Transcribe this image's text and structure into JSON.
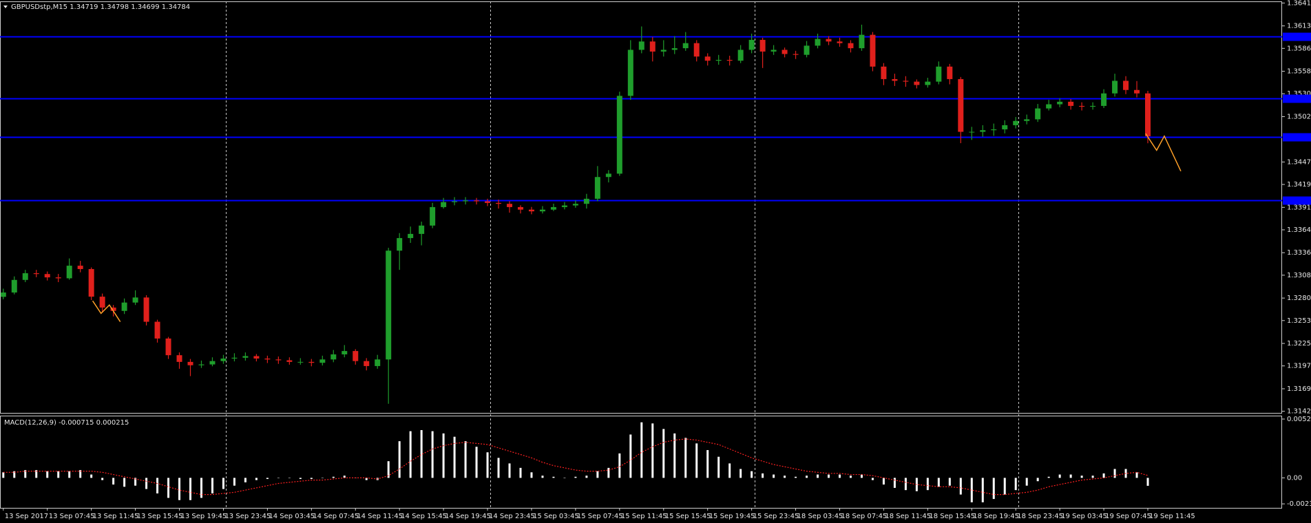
{
  "chart_data": [
    {
      "type": "candlestick",
      "title": "GBPUSDstp,M15  1.34719 1.34798 1.34699 1.34784",
      "xlim": [
        -0.3,
        116.2
      ],
      "ylim": [
        1.314,
        1.36435
      ],
      "yticks": [
        1.36415,
        1.36135,
        {
          "value": 1.3586,
          "label": "1.35860"
        },
        {
          "value": 1.3558,
          "label": "1.35580"
        },
        1.35305,
        1.35025,
        1.3447,
        1.34195,
        1.33915,
        {
          "value": 1.3364,
          "label": "1.33640"
        },
        {
          "value": 1.3336,
          "label": "1.33360"
        },
        1.33085,
        1.32805,
        1.3253,
        {
          "value": 1.3225,
          "label": "1.32250"
        },
        1.31975,
        1.31695,
        {
          "value": 1.3142,
          "label": "1.31420"
        }
      ],
      "xticks": [
        {
          "value": 0,
          "label": "13 Sep 2017"
        },
        {
          "value": 4,
          "label": "13 Sep 07:45"
        },
        {
          "value": 8,
          "label": "13 Sep 11:45"
        },
        {
          "value": 12,
          "label": "13 Sep 15:45"
        },
        {
          "value": 16,
          "label": "13 Sep 19:45"
        },
        {
          "value": 20,
          "label": "13 Sep 23:45"
        },
        {
          "value": 24,
          "label": "14 Sep 03:45"
        },
        {
          "value": 28,
          "label": "14 Sep 07:45"
        },
        {
          "value": 32,
          "label": "14 Sep 11:45"
        },
        {
          "value": 36,
          "label": "14 Sep 15:45"
        },
        {
          "value": 40,
          "label": "14 Sep 19:45"
        },
        {
          "value": 44,
          "label": "14 Sep 23:45"
        },
        {
          "value": 48,
          "label": "15 Sep 03:45"
        },
        {
          "value": 52,
          "label": "15 Sep 07:45"
        },
        {
          "value": 56,
          "label": "15 Sep 11:45"
        },
        {
          "value": 60,
          "label": "15 Sep 15:45"
        },
        {
          "value": 64,
          "label": "15 Sep 19:45"
        },
        {
          "value": 68,
          "label": "15 Sep 23:45"
        },
        {
          "value": 72,
          "label": "18 Sep 03:45"
        },
        {
          "value": 76,
          "label": "18 Sep 07:45"
        },
        {
          "value": 80,
          "label": "18 Sep 11:45"
        },
        {
          "value": 84,
          "label": "18 Sep 15:45"
        },
        {
          "value": 88,
          "label": "18 Sep 19:45"
        },
        {
          "value": 92,
          "label": "18 Sep 23:45"
        },
        {
          "value": 96,
          "label": "19 Sep 03:45"
        },
        {
          "value": 100,
          "label": "19 Sep 07:45"
        },
        {
          "value": 104,
          "label": "19 Sep 11:45"
        }
      ],
      "day_lines": [
        20.25,
        44.25,
        68.25,
        92.25
      ],
      "up_color": "#1f9e2c",
      "down_color": "#e0201c",
      "hlines": [
        1.36006,
        1.35248,
        1.34777,
        1.33999
      ],
      "hline_color": "#0000ff",
      "drawings": [
        {
          "color": "#ffa028",
          "x": [
            8.12,
            8.88,
            9.64,
            10.63
          ],
          "y": [
            1.32771,
            1.32617,
            1.3272,
            1.32515
          ]
        },
        {
          "color": "#ffa028",
          "x": [
            103.8,
            104.8,
            105.5,
            107.0
          ],
          "y": [
            1.34818,
            1.34613,
            1.34787,
            1.34358
          ]
        }
      ],
      "open": [
        1.3282,
        1.32873,
        1.33027,
        1.33109,
        1.33099,
        1.33058,
        1.33047,
        1.33201,
        1.3316,
        1.32822,
        1.32689,
        1.32648,
        1.3275,
        1.32812,
        1.32515,
        1.3231,
        1.32106,
        1.32024,
        1.31983,
        1.31993,
        1.32034,
        1.32065,
        1.32075,
        1.32095,
        1.32065,
        1.32054,
        1.32044,
        1.32024,
        1.32024,
        1.32013,
        1.32054,
        1.32116,
        1.32157,
        1.32034,
        1.31973,
        1.32054,
        1.33385,
        1.33539,
        1.3359,
        1.33692,
        1.33918,
        1.33979,
        1.33989,
        1.33999,
        1.33989,
        1.33969,
        1.33958,
        1.33918,
        1.33887,
        1.33866,
        1.33887,
        1.33918,
        1.33938,
        1.33958,
        1.3402,
        1.34286,
        1.34327,
        1.35279,
        1.35842,
        1.35944,
        1.35821,
        1.35842,
        1.35862,
        1.35924,
        1.3576,
        1.35709,
        1.35719,
        1.35709,
        1.35842,
        1.35964,
        1.35821,
        1.35842,
        1.35791,
        1.35781,
        1.35893,
        1.35975,
        1.35944,
        1.35924,
        1.35862,
        1.36026,
        1.35637,
        1.35484,
        1.35463,
        1.35453,
        1.35412,
        1.35453,
        1.35637,
        1.35484,
        1.34839,
        1.34839,
        1.34859,
        1.34869,
        1.3492,
        1.34972,
        1.34992,
        1.35125,
        1.35176,
        1.35207,
        1.35156,
        1.35146,
        1.35156,
        1.35309,
        1.35463,
        1.35351,
        1.35309
      ],
      "high": [
        1.3292,
        1.3307,
        1.3315,
        1.3315,
        1.3313,
        1.331,
        1.3329,
        1.3326,
        1.3318,
        1.3286,
        1.3272,
        1.328,
        1.329,
        1.3284,
        1.3254,
        1.3233,
        1.3214,
        1.3206,
        1.3204,
        1.3208,
        1.3211,
        1.3213,
        1.3214,
        1.3212,
        1.321,
        1.3209,
        1.3208,
        1.3207,
        1.3206,
        1.321,
        1.3217,
        1.3223,
        1.3218,
        1.3207,
        1.3211,
        1.3342,
        1.336,
        1.3368,
        1.3374,
        1.3397,
        1.3403,
        1.3404,
        1.3404,
        1.3403,
        1.3402,
        1.3401,
        1.3399,
        1.3394,
        1.3392,
        1.3393,
        1.3396,
        1.3398,
        1.34,
        1.3408,
        1.3442,
        1.3437,
        1.3533,
        1.3596,
        1.36128,
        1.36,
        1.3596,
        1.3601,
        1.3606,
        1.3596,
        1.358,
        1.3578,
        1.3577,
        1.359,
        1.3604,
        1.3599,
        1.359,
        1.3587,
        1.3583,
        1.3595,
        1.3604,
        1.3601,
        1.3599,
        1.3596,
        1.3615,
        1.3606,
        1.3568,
        1.3555,
        1.3552,
        1.3548,
        1.355,
        1.357,
        1.3567,
        1.3551,
        1.349,
        1.3492,
        1.3494,
        1.3498,
        1.3502,
        1.3505,
        1.3518,
        1.3523,
        1.3525,
        1.3524,
        1.352,
        1.352,
        1.3536,
        1.3555,
        1.3552,
        1.3546,
        1.3534
      ],
      "low": [
        1.3279,
        1.3285,
        1.33,
        1.3306,
        1.3302,
        1.33,
        1.3303,
        1.3312,
        1.3278,
        1.3264,
        1.3258,
        1.3261,
        1.3272,
        1.3247,
        1.3226,
        1.3206,
        1.3194,
        1.3185,
        1.3195,
        1.3197,
        1.32,
        1.3203,
        1.3204,
        1.3203,
        1.3201,
        1.32,
        1.3199,
        1.3199,
        1.3197,
        1.3198,
        1.3202,
        1.3208,
        1.3199,
        1.3192,
        1.3194,
        1.31512,
        1.3315,
        1.3348,
        1.3345,
        1.3366,
        1.339,
        1.3394,
        1.3395,
        1.3395,
        1.3393,
        1.339,
        1.3385,
        1.3384,
        1.3383,
        1.3384,
        1.3387,
        1.3389,
        1.3391,
        1.339,
        1.3399,
        1.3422,
        1.343,
        1.3523,
        1.358,
        1.357,
        1.3576,
        1.3579,
        1.3583,
        1.357,
        1.3565,
        1.3566,
        1.3565,
        1.3568,
        1.358,
        1.3562,
        1.3578,
        1.3575,
        1.3573,
        1.3575,
        1.3586,
        1.359,
        1.3588,
        1.3581,
        1.3583,
        1.3558,
        1.3541,
        1.354,
        1.3539,
        1.3537,
        1.3538,
        1.3542,
        1.3542,
        1.347,
        1.3474,
        1.3478,
        1.3479,
        1.3482,
        1.3488,
        1.3493,
        1.3496,
        1.351,
        1.3514,
        1.3511,
        1.351,
        1.3511,
        1.3513,
        1.3527,
        1.353,
        1.3526,
        1.34699
      ],
      "close": [
        1.32873,
        1.33027,
        1.33109,
        1.33099,
        1.33058,
        1.33047,
        1.33201,
        1.3316,
        1.32822,
        1.32689,
        1.32648,
        1.3275,
        1.32812,
        1.32515,
        1.3231,
        1.32106,
        1.32024,
        1.31983,
        1.31993,
        1.32034,
        1.32065,
        1.32075,
        1.32095,
        1.32065,
        1.32054,
        1.32044,
        1.32024,
        1.32024,
        1.32013,
        1.32054,
        1.32116,
        1.32157,
        1.32034,
        1.31973,
        1.32054,
        1.33385,
        1.33539,
        1.3359,
        1.33692,
        1.33918,
        1.33979,
        1.33989,
        1.33999,
        1.33989,
        1.33969,
        1.33958,
        1.33918,
        1.33887,
        1.33866,
        1.33887,
        1.33918,
        1.33938,
        1.33958,
        1.3402,
        1.34286,
        1.34327,
        1.35279,
        1.35842,
        1.35944,
        1.35821,
        1.35842,
        1.35862,
        1.35924,
        1.3576,
        1.35709,
        1.35719,
        1.35709,
        1.35842,
        1.35964,
        1.35821,
        1.35842,
        1.35791,
        1.35781,
        1.35893,
        1.35975,
        1.35944,
        1.35924,
        1.35862,
        1.36026,
        1.35637,
        1.35484,
        1.35463,
        1.35453,
        1.35412,
        1.35453,
        1.35637,
        1.35484,
        1.34839,
        1.34839,
        1.34859,
        1.34869,
        1.3492,
        1.34972,
        1.34992,
        1.35125,
        1.35176,
        1.35207,
        1.35156,
        1.35146,
        1.35156,
        1.35309,
        1.35463,
        1.35351,
        1.35309,
        1.34784
      ]
    },
    {
      "type": "macd",
      "title": "MACD(12,26,9) -0.000715 0.000215",
      "xlim": [
        -0.3,
        116.2
      ],
      "ylim": [
        -0.0027,
        0.0056
      ],
      "yticks": [
        0.005293,
        {
          "value": 0,
          "label": "0.00"
        },
        -0.00234
      ],
      "series": [
        {
          "type": "bar",
          "color": "#ffffff",
          "values": [
            0.0005,
            0.0006,
            0.0007,
            0.0007,
            0.0006,
            0.0006,
            0.0006,
            0.0007,
            0.0003,
            -0.0002,
            -0.0006,
            -0.0008,
            -0.0007,
            -0.001,
            -0.0014,
            -0.0018,
            -0.002,
            -0.002,
            -0.0018,
            -0.0014,
            -0.001,
            -0.0007,
            -0.0004,
            -0.0002,
            -0.0001,
            0,
            0,
            -0.0001,
            -0.0001,
            0,
            0.0001,
            0.0002,
            0,
            -0.0002,
            -0.0002,
            0.0015,
            0.0033,
            0.0042,
            0.0043,
            0.0042,
            0.004,
            0.0037,
            0.0033,
            0.0028,
            0.0023,
            0.0018,
            0.0013,
            0.0009,
            0.0005,
            0.0002,
            0.0001,
            0,
            0.0001,
            0.0002,
            0.0006,
            0.0009,
            0.0022,
            0.0039,
            0.005,
            0.0049,
            0.0044,
            0.004,
            0.0036,
            0.0031,
            0.0025,
            0.0019,
            0.0013,
            0.0008,
            0.0006,
            0.0004,
            0.0003,
            0.0002,
            0.0001,
            0.0002,
            0.0003,
            0.0003,
            0.0003,
            0.0002,
            0.0003,
            -0.0002,
            -0.0006,
            -0.0009,
            -0.0011,
            -0.0012,
            -0.0011,
            -0.0008,
            -0.0007,
            -0.0015,
            -0.0022,
            -0.0022,
            -0.0019,
            -0.0015,
            -0.0011,
            -0.0007,
            -0.0003,
            0.0001,
            0.0003,
            0.0003,
            0.0002,
            0.0002,
            0.0004,
            0.0008,
            0.0008,
            0.0005,
            -0.000715
          ]
        },
        {
          "type": "line",
          "color": "#ff2020",
          "values": [
            0.0005,
            0.0005,
            0.0006,
            0.0006,
            0.0006,
            0.0006,
            0.0006,
            0.0006,
            0.0006,
            0.0005,
            0.0003,
            0.0001,
            -0.0001,
            -0.0003,
            -0.0005,
            -0.0008,
            -0.0011,
            -0.0013,
            -0.0015,
            -0.0015,
            -0.0014,
            -0.0013,
            -0.0011,
            -0.0009,
            -0.0007,
            -0.0005,
            -0.0004,
            -0.0003,
            -0.0002,
            -0.0002,
            -0.0001,
            0,
            0,
            0,
            -0.0001,
            0.0002,
            0.0008,
            0.0015,
            0.0021,
            0.0026,
            0.0029,
            0.0031,
            0.0032,
            0.0031,
            0.003,
            0.0027,
            0.0024,
            0.0021,
            0.0018,
            0.0014,
            0.0011,
            0.0009,
            0.0007,
            0.0006,
            0.0006,
            0.0007,
            0.001,
            0.0016,
            0.0023,
            0.0028,
            0.0032,
            0.0034,
            0.0035,
            0.0034,
            0.0032,
            0.003,
            0.0026,
            0.0022,
            0.0018,
            0.0015,
            0.0012,
            0.001,
            0.0008,
            0.0006,
            0.0005,
            0.0004,
            0.0004,
            0.0003,
            0.0003,
            0.0002,
            0,
            -0.0002,
            -0.0004,
            -0.0006,
            -0.0007,
            -0.0008,
            -0.0008,
            -0.0009,
            -0.0011,
            -0.0013,
            -0.0015,
            -0.0015,
            -0.0014,
            -0.0013,
            -0.0011,
            -0.0008,
            -0.0006,
            -0.0004,
            -0.0002,
            -0.0001,
            0,
            0.0002,
            0.0004,
            0.0005,
            0.000215
          ]
        }
      ]
    }
  ]
}
